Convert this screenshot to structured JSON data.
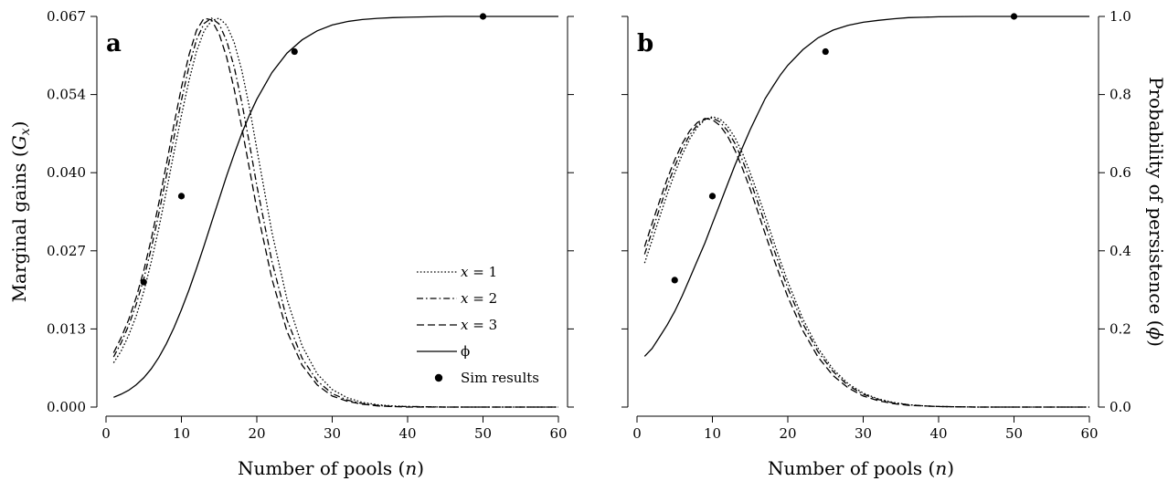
{
  "chart_data": [
    {
      "type": "line",
      "panel_label": "a",
      "xlabel": "Number of pools (n)",
      "ylabel": "Marginal gains (G_x)",
      "xlim": [
        0,
        60
      ],
      "ylim": [
        0,
        0.067
      ],
      "xticks": [
        0,
        10,
        20,
        30,
        40,
        50,
        60
      ],
      "yticks": [
        "0.000",
        "0.013",
        "0.027",
        "0.040",
        "0.054",
        "0.067"
      ],
      "y2ticks": [],
      "grid": false,
      "legend_position": "center-right",
      "series": [
        {
          "name": "x = 1",
          "style": "dotted",
          "x": [
            1,
            2,
            3,
            4,
            5,
            6,
            7,
            8,
            9,
            10,
            11,
            12,
            13,
            14,
            15,
            16,
            17,
            18,
            19,
            20,
            22,
            24,
            26,
            28,
            30,
            32,
            34,
            36,
            38,
            40,
            45,
            50,
            55,
            60
          ],
          "y": [
            0.0076,
            0.0096,
            0.0123,
            0.0156,
            0.0198,
            0.0249,
            0.0307,
            0.037,
            0.0436,
            0.05,
            0.056,
            0.061,
            0.0645,
            0.0663,
            0.0667,
            0.0655,
            0.0625,
            0.0578,
            0.0515,
            0.0443,
            0.03,
            0.0185,
            0.0105,
            0.0057,
            0.003,
            0.0016,
            0.0008,
            0.0004,
            0.0002,
            0.0001,
            0,
            0,
            0,
            0
          ]
        },
        {
          "name": "x = 2",
          "style": "dashdot",
          "x": [
            1,
            2,
            3,
            4,
            5,
            6,
            7,
            8,
            9,
            10,
            11,
            12,
            13,
            14,
            15,
            16,
            17,
            18,
            19,
            20,
            22,
            24,
            26,
            28,
            30,
            32,
            34,
            36,
            38,
            40,
            45,
            50,
            55,
            60
          ],
          "y": [
            0.0086,
            0.011,
            0.014,
            0.0176,
            0.022,
            0.0272,
            0.0332,
            0.0396,
            0.0462,
            0.0526,
            0.0584,
            0.063,
            0.0658,
            0.0667,
            0.0657,
            0.0628,
            0.0583,
            0.0523,
            0.0453,
            0.038,
            0.025,
            0.015,
            0.0084,
            0.0045,
            0.0023,
            0.0012,
            0.0006,
            0.0003,
            0.0001,
            0.0001,
            0,
            0,
            0,
            0
          ]
        },
        {
          "name": "x = 3",
          "style": "dashed",
          "x": [
            1,
            2,
            3,
            4,
            5,
            6,
            7,
            8,
            9,
            10,
            11,
            12,
            13,
            14,
            15,
            16,
            17,
            18,
            19,
            20,
            22,
            24,
            26,
            28,
            30,
            32,
            34,
            36,
            38,
            40,
            45,
            50,
            55,
            60
          ],
          "y": [
            0.0093,
            0.0119,
            0.015,
            0.0188,
            0.0234,
            0.0288,
            0.035,
            0.0416,
            0.0484,
            0.0548,
            0.0604,
            0.0646,
            0.0667,
            0.0664,
            0.064,
            0.06,
            0.0545,
            0.048,
            0.041,
            0.034,
            0.022,
            0.013,
            0.0072,
            0.0038,
            0.0019,
            0.001,
            0.0005,
            0.0002,
            0.0001,
            0,
            0,
            0,
            0,
            0
          ]
        },
        {
          "name": "ϕ",
          "style": "solid",
          "axis": "right",
          "x": [
            1,
            2,
            3,
            4,
            5,
            6,
            7,
            8,
            9,
            10,
            11,
            12,
            13,
            14,
            15,
            16,
            17,
            18,
            19,
            20,
            22,
            24,
            26,
            28,
            30,
            32,
            34,
            36,
            38,
            40,
            45,
            50,
            55,
            60
          ],
          "y": [
            0.025,
            0.033,
            0.043,
            0.057,
            0.075,
            0.098,
            0.127,
            0.162,
            0.203,
            0.249,
            0.3,
            0.355,
            0.413,
            0.473,
            0.533,
            0.592,
            0.648,
            0.7,
            0.747,
            0.788,
            0.856,
            0.906,
            0.94,
            0.963,
            0.978,
            0.987,
            0.992,
            0.995,
            0.997,
            0.998,
            1.0,
            1.0,
            1.0,
            1.0
          ]
        },
        {
          "name": "Sim results",
          "style": "points",
          "axis": "right",
          "x": [
            5,
            10,
            25,
            50
          ],
          "y": [
            0.32,
            0.54,
            0.91,
            1.0
          ]
        }
      ]
    },
    {
      "type": "line",
      "panel_label": "b",
      "xlabel": "Number of pools (n)",
      "ylabel": "Probability of persistence (ϕ)",
      "xlim": [
        0,
        60
      ],
      "ylim": [
        0,
        1.0
      ],
      "xticks": [
        0,
        10,
        20,
        30,
        40,
        50,
        60
      ],
      "yticks": [],
      "y2ticks": [
        "0.0",
        "0.2",
        "0.4",
        "0.6",
        "0.8",
        "1.0"
      ],
      "grid": false,
      "series": [
        {
          "name": "x = 1",
          "style": "dotted",
          "axis": "left",
          "x": [
            1,
            2,
            3,
            4,
            5,
            6,
            7,
            8,
            9,
            10,
            11,
            12,
            13,
            14,
            15,
            16,
            17,
            18,
            19,
            20,
            22,
            24,
            26,
            28,
            30,
            32,
            34,
            36,
            38,
            40,
            45,
            50,
            55,
            60
          ],
          "y": [
            0.0247,
            0.0286,
            0.0326,
            0.0365,
            0.0401,
            0.0433,
            0.046,
            0.048,
            0.0493,
            0.0498,
            0.0494,
            0.0482,
            0.0462,
            0.0435,
            0.0402,
            0.0366,
            0.0328,
            0.0289,
            0.0251,
            0.0215,
            0.0151,
            0.0101,
            0.0065,
            0.004,
            0.0024,
            0.0014,
            0.0008,
            0.0004,
            0.0002,
            0.0001,
            0,
            0,
            0,
            0
          ]
        },
        {
          "name": "x = 2",
          "style": "dashdot",
          "axis": "left",
          "x": [
            1,
            2,
            3,
            4,
            5,
            6,
            7,
            8,
            9,
            10,
            11,
            12,
            13,
            14,
            15,
            16,
            17,
            18,
            19,
            20,
            22,
            24,
            26,
            28,
            30,
            32,
            34,
            36,
            38,
            40,
            45,
            50,
            55,
            60
          ],
          "y": [
            0.0262,
            0.0301,
            0.0341,
            0.0379,
            0.0413,
            0.0443,
            0.0467,
            0.0484,
            0.0494,
            0.0496,
            0.0489,
            0.0474,
            0.0452,
            0.0423,
            0.0389,
            0.0352,
            0.0314,
            0.0276,
            0.0239,
            0.0204,
            0.0143,
            0.0095,
            0.0061,
            0.0037,
            0.0022,
            0.0013,
            0.0007,
            0.0004,
            0.0002,
            0.0001,
            0,
            0,
            0,
            0
          ]
        },
        {
          "name": "x = 3",
          "style": "dashed",
          "axis": "left",
          "x": [
            1,
            2,
            3,
            4,
            5,
            6,
            7,
            8,
            9,
            10,
            11,
            12,
            13,
            14,
            15,
            16,
            17,
            18,
            19,
            20,
            22,
            24,
            26,
            28,
            30,
            32,
            34,
            36,
            38,
            40,
            45,
            50,
            55,
            60
          ],
          "y": [
            0.0275,
            0.0315,
            0.0354,
            0.0391,
            0.0424,
            0.0452,
            0.0474,
            0.0488,
            0.0495,
            0.0493,
            0.0483,
            0.0465,
            0.044,
            0.0409,
            0.0374,
            0.0336,
            0.0297,
            0.0259,
            0.0223,
            0.0189,
            0.0131,
            0.0086,
            0.0054,
            0.0033,
            0.0019,
            0.0011,
            0.0006,
            0.0003,
            0.0002,
            0.0001,
            0,
            0,
            0,
            0
          ]
        },
        {
          "name": "ϕ",
          "style": "solid",
          "axis": "right",
          "x": [
            1,
            2,
            3,
            4,
            5,
            6,
            7,
            8,
            9,
            10,
            11,
            12,
            13,
            14,
            15,
            16,
            17,
            18,
            19,
            20,
            22,
            24,
            26,
            28,
            30,
            32,
            34,
            36,
            38,
            40,
            45,
            50,
            55,
            60
          ],
          "y": [
            0.13,
            0.15,
            0.18,
            0.21,
            0.245,
            0.285,
            0.33,
            0.375,
            0.42,
            0.47,
            0.52,
            0.57,
            0.62,
            0.665,
            0.71,
            0.75,
            0.79,
            0.82,
            0.85,
            0.875,
            0.915,
            0.945,
            0.965,
            0.977,
            0.985,
            0.99,
            0.994,
            0.997,
            0.998,
            0.999,
            1.0,
            1.0,
            1.0,
            1.0
          ]
        },
        {
          "name": "Sim results",
          "style": "points",
          "axis": "right",
          "x": [
            5,
            10,
            25,
            50
          ],
          "y": [
            0.325,
            0.54,
            0.91,
            1.0
          ]
        }
      ]
    }
  ],
  "legend": {
    "entries": [
      {
        "text": "𝑥 = 1",
        "style": "dotted"
      },
      {
        "text": "𝑥 = 2",
        "style": "dashdot"
      },
      {
        "text": "𝑥 = 3",
        "style": "dashed"
      },
      {
        "text": "ϕ",
        "style": "solid"
      },
      {
        "text": "Sim results",
        "style": "points"
      }
    ]
  },
  "labels": {
    "panel_a": "a",
    "panel_b": "b",
    "xlabel_a_main": "Number of pools (",
    "xlabel_a_var": "n",
    "xlabel_a_end": ")",
    "xlabel_b_main": "Number of pools (",
    "xlabel_b_var": "n",
    "xlabel_b_end": ")",
    "ylabel_left_main": "Marginal gains (",
    "ylabel_left_var": "G",
    "ylabel_left_sub": "x",
    "ylabel_left_end": ")",
    "ylabel_right_main": "Probability of persistence (",
    "ylabel_right_var": "ϕ",
    "ylabel_right_end": ")"
  }
}
